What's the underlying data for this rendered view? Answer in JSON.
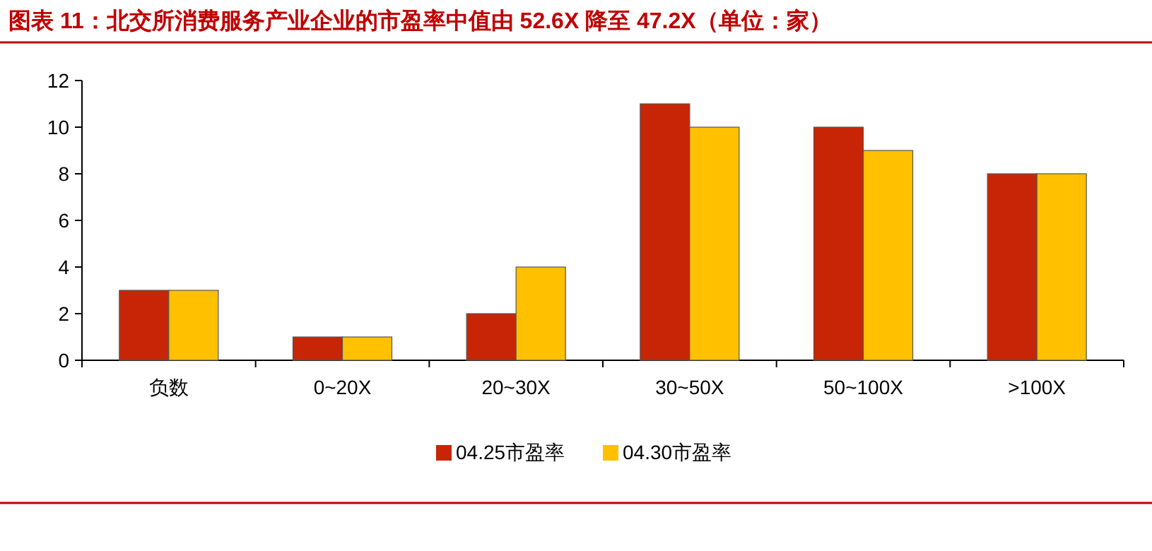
{
  "chart_data": {
    "type": "bar",
    "title": "图表 11：北交所消费服务产业企业的市盈率中值由 52.6X 降至 47.2X（单位：家）",
    "categories": [
      "负数",
      "0~20X",
      "20~30X",
      "30~50X",
      "50~100X",
      ">100X"
    ],
    "series": [
      {
        "name": "04.25市盈率",
        "color": "#c82506",
        "values": [
          3,
          1,
          2,
          11,
          10,
          8
        ]
      },
      {
        "name": "04.30市盈率",
        "color": "#ffc000",
        "values": [
          3,
          1,
          4,
          10,
          9,
          8
        ]
      }
    ],
    "ylim": [
      0,
      12
    ],
    "yticks": [
      0,
      2,
      4,
      6,
      8,
      10,
      12
    ],
    "grid": false,
    "legend": "bottom"
  }
}
